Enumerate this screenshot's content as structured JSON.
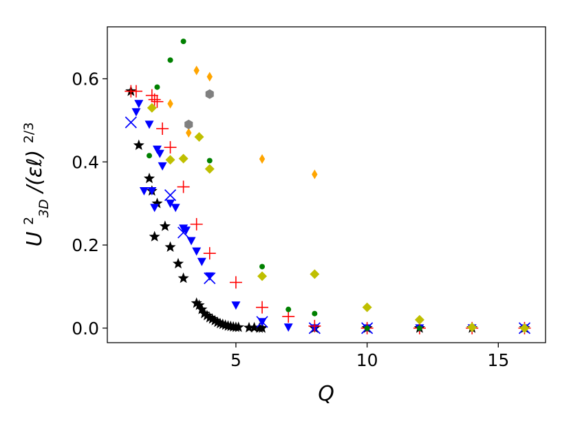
{
  "chart_data": {
    "type": "scatter",
    "title": "",
    "xlabel": "Q",
    "ylabel": {
      "base": "U",
      "sup": "2",
      "sub": "3D",
      "rest": "/(εℓ)",
      "exp": "2/3"
    },
    "xlim": [
      0.1,
      16.8
    ],
    "ylim": [
      -0.035,
      0.725
    ],
    "x_ticks": [
      5,
      10,
      15
    ],
    "y_ticks": [
      0.0,
      0.2,
      0.4,
      0.6
    ],
    "x_tick_labels": [
      "5",
      "10",
      "15"
    ],
    "y_tick_labels": [
      "0.0",
      "0.2",
      "0.4",
      "0.6"
    ],
    "grid": false,
    "legend": "none",
    "series": [
      {
        "marker": "star",
        "color": "#000000",
        "points": [
          [
            1.0,
            0.57
          ],
          [
            1.3,
            0.44
          ],
          [
            1.7,
            0.36
          ],
          [
            1.8,
            0.33
          ],
          [
            1.9,
            0.22
          ],
          [
            2.0,
            0.3
          ],
          [
            2.3,
            0.245
          ],
          [
            2.5,
            0.195
          ],
          [
            2.8,
            0.155
          ],
          [
            3.0,
            0.12
          ],
          [
            3.5,
            0.06
          ],
          [
            3.6,
            0.055
          ],
          [
            3.7,
            0.045
          ],
          [
            3.8,
            0.035
          ],
          [
            3.9,
            0.03
          ],
          [
            4.0,
            0.025
          ],
          [
            4.1,
            0.022
          ],
          [
            4.2,
            0.018
          ],
          [
            4.3,
            0.014
          ],
          [
            4.4,
            0.011
          ],
          [
            4.5,
            0.009
          ],
          [
            4.6,
            0.007
          ],
          [
            4.7,
            0.005
          ],
          [
            4.8,
            0.004
          ],
          [
            4.9,
            0.003
          ],
          [
            5.0,
            0.002
          ],
          [
            5.1,
            0.002
          ],
          [
            5.5,
            0.001
          ],
          [
            5.7,
            0.001
          ],
          [
            5.9,
            0.0
          ],
          [
            6.0,
            0.0
          ],
          [
            8.0,
            0.0
          ],
          [
            10.0,
            0.0
          ],
          [
            12.0,
            0.0
          ],
          [
            14.0,
            0.0
          ],
          [
            16.0,
            0.0
          ]
        ]
      },
      {
        "marker": "triangle-down",
        "color": "#0000ff",
        "points": [
          [
            1.2,
            0.52
          ],
          [
            1.3,
            0.54
          ],
          [
            1.5,
            0.33
          ],
          [
            1.7,
            0.49
          ],
          [
            1.8,
            0.33
          ],
          [
            1.9,
            0.29
          ],
          [
            2.0,
            0.43
          ],
          [
            2.1,
            0.42
          ],
          [
            2.2,
            0.39
          ],
          [
            2.5,
            0.3
          ],
          [
            2.7,
            0.29
          ],
          [
            3.0,
            0.24
          ],
          [
            3.1,
            0.235
          ],
          [
            3.3,
            0.21
          ],
          [
            3.5,
            0.185
          ],
          [
            3.7,
            0.16
          ],
          [
            4.0,
            0.125
          ],
          [
            5.0,
            0.055
          ],
          [
            6.0,
            0.015
          ],
          [
            7.0,
            0.002
          ],
          [
            8.0,
            0.0
          ],
          [
            10.0,
            0.0
          ],
          [
            12.0,
            0.0
          ],
          [
            14.0,
            0.0
          ],
          [
            16.0,
            0.0
          ]
        ]
      },
      {
        "marker": "x",
        "color": "#0000ff",
        "points": [
          [
            1.0,
            0.495
          ],
          [
            2.5,
            0.32
          ],
          [
            3.0,
            0.23
          ],
          [
            4.0,
            0.12
          ],
          [
            6.0,
            0.015
          ],
          [
            8.0,
            0.0
          ],
          [
            10.0,
            0.0
          ],
          [
            16.0,
            0.0
          ]
        ]
      },
      {
        "marker": "plus",
        "color": "#ff0000",
        "points": [
          [
            1.0,
            0.57
          ],
          [
            1.2,
            0.57
          ],
          [
            1.8,
            0.56
          ],
          [
            1.9,
            0.55
          ],
          [
            2.0,
            0.545
          ],
          [
            2.2,
            0.48
          ],
          [
            2.5,
            0.435
          ],
          [
            3.0,
            0.34
          ],
          [
            3.5,
            0.25
          ],
          [
            4.0,
            0.18
          ],
          [
            5.0,
            0.11
          ],
          [
            6.0,
            0.05
          ],
          [
            7.0,
            0.028
          ],
          [
            8.0,
            0.005
          ],
          [
            10.0,
            0.0
          ],
          [
            12.0,
            0.0
          ],
          [
            14.0,
            0.0
          ],
          [
            16.0,
            0.0
          ]
        ]
      },
      {
        "marker": "circle",
        "color": "#008000",
        "points": [
          [
            2.0,
            0.58
          ],
          [
            1.7,
            0.415
          ],
          [
            2.5,
            0.645
          ],
          [
            3.0,
            0.69
          ],
          [
            4.0,
            0.403
          ],
          [
            6.0,
            0.148
          ],
          [
            7.0,
            0.045
          ],
          [
            8.0,
            0.035
          ],
          [
            10.0,
            0.0
          ],
          [
            12.0,
            0.0
          ],
          [
            16.0,
            0.0
          ]
        ]
      },
      {
        "marker": "thin-diamond",
        "color": "#ffa500",
        "points": [
          [
            2.5,
            0.54
          ],
          [
            3.5,
            0.62
          ],
          [
            4.0,
            0.605
          ],
          [
            3.2,
            0.47
          ],
          [
            6.0,
            0.407
          ],
          [
            8.0,
            0.37
          ]
        ]
      },
      {
        "marker": "diamond",
        "color": "#bfbf00",
        "points": [
          [
            1.8,
            0.53
          ],
          [
            2.5,
            0.405
          ],
          [
            3.0,
            0.408
          ],
          [
            3.6,
            0.46
          ],
          [
            4.0,
            0.383
          ],
          [
            6.0,
            0.125
          ],
          [
            8.0,
            0.13
          ],
          [
            10.0,
            0.05
          ],
          [
            12.0,
            0.02
          ],
          [
            14.0,
            0.002
          ],
          [
            16.0,
            0.0
          ]
        ]
      },
      {
        "marker": "hexagon",
        "color": "#808080",
        "points": [
          [
            3.2,
            0.49
          ],
          [
            4.0,
            0.563
          ]
        ]
      }
    ]
  }
}
